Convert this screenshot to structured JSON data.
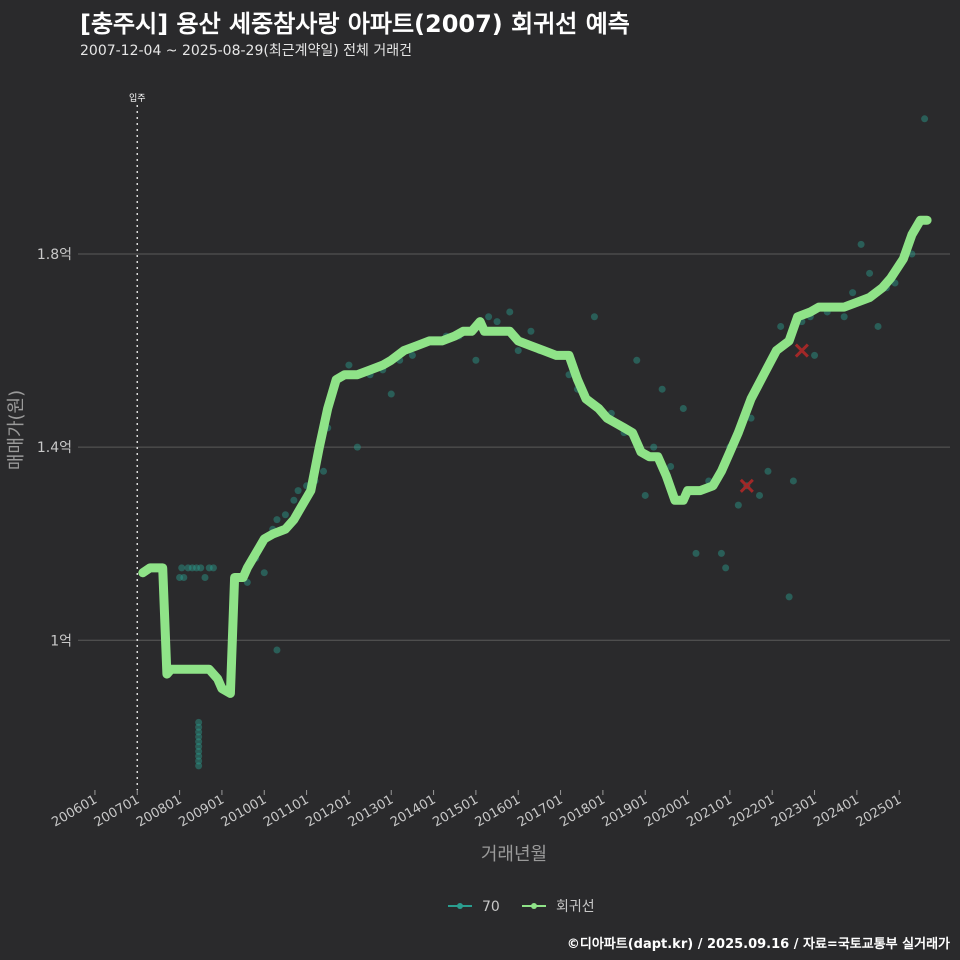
{
  "header": {
    "title": "[충주시] 용산 세중참사랑 아파트(2007) 회귀선 예측",
    "subtitle": "2007-12-04 ~ 2025-08-29(최근계약일) 전체 거래건"
  },
  "footer": {
    "credit": "©디아파트(dapt.kr) / 2025.09.16 / 자료=국토교통부 실거래가"
  },
  "colors": {
    "background": "#2a2a2c",
    "grid": "#5a5a5a",
    "regression": "#8fe388",
    "scatter": "#2a9d8f",
    "outlier": "#a12828"
  },
  "chart_data": {
    "type": "line",
    "title": "[충주시] 용산 세중참사랑 아파트(2007) 회귀선 예측",
    "xlabel": "거래년월",
    "ylabel": "매매가(원)",
    "xlim": [
      2005.6,
      2026.2
    ],
    "ylim": [
      0.69,
      2.15
    ],
    "y_ticks": [
      {
        "value": 1.0,
        "label": "1억"
      },
      {
        "value": 1.4,
        "label": "1.4억"
      },
      {
        "value": 1.8,
        "label": "1.8억"
      }
    ],
    "x_ticks": [
      {
        "value": 2006.0,
        "label": "200601"
      },
      {
        "value": 2007.0,
        "label": "200701"
      },
      {
        "value": 2008.0,
        "label": "200801"
      },
      {
        "value": 2009.0,
        "label": "200901"
      },
      {
        "value": 2010.0,
        "label": "201001"
      },
      {
        "value": 2011.0,
        "label": "201101"
      },
      {
        "value": 2012.0,
        "label": "201201"
      },
      {
        "value": 2013.0,
        "label": "201301"
      },
      {
        "value": 2014.0,
        "label": "201401"
      },
      {
        "value": 2015.0,
        "label": "201501"
      },
      {
        "value": 2016.0,
        "label": "201601"
      },
      {
        "value": 2017.0,
        "label": "201701"
      },
      {
        "value": 2018.0,
        "label": "201801"
      },
      {
        "value": 2019.0,
        "label": "201901"
      },
      {
        "value": 2020.0,
        "label": "202001"
      },
      {
        "value": 2021.0,
        "label": "202101"
      },
      {
        "value": 2022.0,
        "label": "202201"
      },
      {
        "value": 2023.0,
        "label": "202301"
      },
      {
        "value": 2024.0,
        "label": "202401"
      },
      {
        "value": 2025.0,
        "label": "202501"
      }
    ],
    "annotation": {
      "x": 2007.0,
      "label": "입주"
    },
    "legend": [
      {
        "name": "70",
        "color": "#2a9d8f"
      },
      {
        "name": "회귀선",
        "color": "#8fe388"
      }
    ],
    "series": [
      {
        "name": "회귀선",
        "color": "#8fe388",
        "points": [
          [
            2007.13,
            1.14
          ],
          [
            2007.3,
            1.15
          ],
          [
            2007.6,
            1.15
          ],
          [
            2007.7,
            0.93
          ],
          [
            2007.8,
            0.94
          ],
          [
            2008.2,
            0.94
          ],
          [
            2008.5,
            0.94
          ],
          [
            2008.7,
            0.94
          ],
          [
            2008.9,
            0.92
          ],
          [
            2009.0,
            0.9
          ],
          [
            2009.2,
            0.89
          ],
          [
            2009.3,
            1.13
          ],
          [
            2009.5,
            1.13
          ],
          [
            2009.6,
            1.15
          ],
          [
            2009.8,
            1.18
          ],
          [
            2010.0,
            1.21
          ],
          [
            2010.2,
            1.22
          ],
          [
            2010.5,
            1.23
          ],
          [
            2010.7,
            1.25
          ],
          [
            2010.9,
            1.28
          ],
          [
            2011.1,
            1.31
          ],
          [
            2011.3,
            1.4
          ],
          [
            2011.5,
            1.48
          ],
          [
            2011.7,
            1.54
          ],
          [
            2011.9,
            1.55
          ],
          [
            2012.2,
            1.55
          ],
          [
            2012.5,
            1.56
          ],
          [
            2012.8,
            1.57
          ],
          [
            2013.0,
            1.58
          ],
          [
            2013.3,
            1.6
          ],
          [
            2013.6,
            1.61
          ],
          [
            2013.9,
            1.62
          ],
          [
            2014.2,
            1.62
          ],
          [
            2014.5,
            1.63
          ],
          [
            2014.7,
            1.64
          ],
          [
            2014.9,
            1.64
          ],
          [
            2015.1,
            1.66
          ],
          [
            2015.2,
            1.64
          ],
          [
            2015.5,
            1.64
          ],
          [
            2015.8,
            1.64
          ],
          [
            2016.0,
            1.62
          ],
          [
            2016.3,
            1.61
          ],
          [
            2016.6,
            1.6
          ],
          [
            2016.9,
            1.59
          ],
          [
            2017.2,
            1.59
          ],
          [
            2017.4,
            1.54
          ],
          [
            2017.6,
            1.5
          ],
          [
            2017.9,
            1.48
          ],
          [
            2018.1,
            1.46
          ],
          [
            2018.3,
            1.45
          ],
          [
            2018.5,
            1.44
          ],
          [
            2018.7,
            1.43
          ],
          [
            2018.9,
            1.39
          ],
          [
            2019.1,
            1.38
          ],
          [
            2019.3,
            1.38
          ],
          [
            2019.5,
            1.34
          ],
          [
            2019.7,
            1.29
          ],
          [
            2019.9,
            1.29
          ],
          [
            2020.0,
            1.31
          ],
          [
            2020.3,
            1.31
          ],
          [
            2020.6,
            1.32
          ],
          [
            2020.8,
            1.35
          ],
          [
            2021.0,
            1.39
          ],
          [
            2021.2,
            1.43
          ],
          [
            2021.5,
            1.5
          ],
          [
            2021.8,
            1.55
          ],
          [
            2022.1,
            1.6
          ],
          [
            2022.4,
            1.62
          ],
          [
            2022.6,
            1.67
          ],
          [
            2022.9,
            1.68
          ],
          [
            2023.1,
            1.69
          ],
          [
            2023.4,
            1.69
          ],
          [
            2023.7,
            1.69
          ],
          [
            2024.0,
            1.7
          ],
          [
            2024.3,
            1.71
          ],
          [
            2024.6,
            1.73
          ],
          [
            2024.8,
            1.75
          ],
          [
            2025.1,
            1.79
          ],
          [
            2025.3,
            1.84
          ],
          [
            2025.5,
            1.87
          ],
          [
            2025.66,
            1.87
          ]
        ]
      },
      {
        "name": "70",
        "color": "#2a9d8f",
        "type": "scatter",
        "points": [
          [
            2008.0,
            1.13
          ],
          [
            2008.05,
            1.15
          ],
          [
            2008.1,
            1.13
          ],
          [
            2008.2,
            1.15
          ],
          [
            2008.3,
            1.15
          ],
          [
            2008.4,
            1.15
          ],
          [
            2008.5,
            1.15
          ],
          [
            2008.6,
            1.13
          ],
          [
            2008.7,
            1.15
          ],
          [
            2008.8,
            1.15
          ],
          [
            2008.45,
            0.82
          ],
          [
            2008.45,
            0.8
          ],
          [
            2008.45,
            0.79
          ],
          [
            2008.45,
            0.78
          ],
          [
            2008.45,
            0.77
          ],
          [
            2008.45,
            0.76
          ],
          [
            2008.45,
            0.75
          ],
          [
            2008.45,
            0.74
          ],
          [
            2008.45,
            0.83
          ],
          [
            2008.45,
            0.81
          ],
          [
            2009.3,
            1.11
          ],
          [
            2009.6,
            1.12
          ],
          [
            2009.8,
            1.17
          ],
          [
            2010.0,
            1.14
          ],
          [
            2010.2,
            1.23
          ],
          [
            2010.3,
            1.25
          ],
          [
            2010.5,
            1.26
          ],
          [
            2010.7,
            1.29
          ],
          [
            2010.8,
            1.31
          ],
          [
            2011.0,
            1.32
          ],
          [
            2011.2,
            1.33
          ],
          [
            2011.4,
            1.35
          ],
          [
            2010.3,
            0.98
          ],
          [
            2011.5,
            1.44
          ],
          [
            2012.0,
            1.57
          ],
          [
            2012.2,
            1.4
          ],
          [
            2012.5,
            1.55
          ],
          [
            2012.8,
            1.56
          ],
          [
            2013.0,
            1.51
          ],
          [
            2013.2,
            1.58
          ],
          [
            2013.5,
            1.59
          ],
          [
            2013.9,
            1.62
          ],
          [
            2014.3,
            1.63
          ],
          [
            2014.6,
            1.63
          ],
          [
            2015.0,
            1.58
          ],
          [
            2015.3,
            1.67
          ],
          [
            2015.5,
            1.66
          ],
          [
            2015.8,
            1.68
          ],
          [
            2016.0,
            1.6
          ],
          [
            2016.3,
            1.64
          ],
          [
            2016.5,
            1.6
          ],
          [
            2017.2,
            1.55
          ],
          [
            2017.4,
            1.52
          ],
          [
            2017.8,
            1.67
          ],
          [
            2018.2,
            1.47
          ],
          [
            2018.5,
            1.43
          ],
          [
            2018.8,
            1.58
          ],
          [
            2019.0,
            1.3
          ],
          [
            2019.2,
            1.4
          ],
          [
            2019.4,
            1.52
          ],
          [
            2019.6,
            1.36
          ],
          [
            2019.9,
            1.48
          ],
          [
            2020.2,
            1.18
          ],
          [
            2020.5,
            1.33
          ],
          [
            2020.8,
            1.18
          ],
          [
            2020.9,
            1.15
          ],
          [
            2021.0,
            1.4
          ],
          [
            2021.2,
            1.28
          ],
          [
            2021.4,
            1.32
          ],
          [
            2021.5,
            1.46
          ],
          [
            2021.7,
            1.3
          ],
          [
            2021.9,
            1.35
          ],
          [
            2022.0,
            1.58
          ],
          [
            2022.2,
            1.65
          ],
          [
            2022.4,
            1.09
          ],
          [
            2022.5,
            1.33
          ],
          [
            2022.7,
            1.66
          ],
          [
            2022.9,
            1.67
          ],
          [
            2023.0,
            1.59
          ],
          [
            2023.3,
            1.68
          ],
          [
            2023.5,
            1.69
          ],
          [
            2023.7,
            1.67
          ],
          [
            2023.9,
            1.72
          ],
          [
            2024.1,
            1.82
          ],
          [
            2024.3,
            1.76
          ],
          [
            2024.5,
            1.65
          ],
          [
            2024.7,
            1.73
          ],
          [
            2024.9,
            1.74
          ],
          [
            2025.1,
            1.79
          ],
          [
            2025.3,
            1.8
          ],
          [
            2025.5,
            1.87
          ],
          [
            2025.6,
            2.08
          ]
        ]
      },
      {
        "name": "outlier",
        "color": "#a12828",
        "type": "marker",
        "points": [
          [
            2021.4,
            1.32
          ],
          [
            2022.7,
            1.6
          ]
        ]
      }
    ]
  }
}
